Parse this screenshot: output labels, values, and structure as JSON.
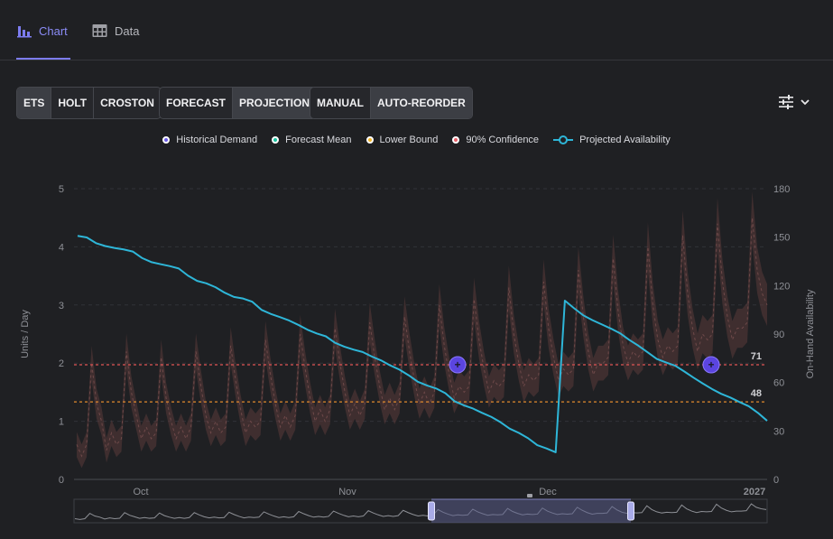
{
  "tabs": [
    {
      "label": "Chart",
      "icon": "bar-chart-icon",
      "active": true
    },
    {
      "label": "Data",
      "icon": "table-icon",
      "active": false
    }
  ],
  "model_group": [
    {
      "label": "ETS",
      "active": true
    },
    {
      "label": "HOLT",
      "active": false
    },
    {
      "label": "CROSTON",
      "active": false
    }
  ],
  "view_group": [
    {
      "label": "FORECAST",
      "active": false
    },
    {
      "label": "PROJECTION",
      "active": true
    }
  ],
  "mode_group": [
    {
      "label": "MANUAL",
      "active": false
    },
    {
      "label": "AUTO-REORDER",
      "active": true
    }
  ],
  "menu": {
    "icon": "sliders-icon",
    "chevron": "chevron-down-icon"
  },
  "legend": [
    {
      "label": "Historical Demand",
      "color": "#6c5ce7"
    },
    {
      "label": "Forecast Mean",
      "color": "#19c3a0"
    },
    {
      "label": "Lower Bound",
      "color": "#f0b429"
    },
    {
      "label": "90% Confidence",
      "color": "#e8606a"
    },
    {
      "label": "Projected Availability",
      "color": "#2eb6d8"
    }
  ],
  "chart_data": {
    "type": "line",
    "y_left": {
      "label": "Units / Day",
      "ticks": [
        0,
        1,
        2,
        3,
        4,
        5
      ],
      "range": [
        0,
        5
      ]
    },
    "y_right": {
      "label": "On-Hand Availability",
      "ticks": [
        0,
        30,
        60,
        90,
        120,
        150,
        180
      ],
      "range": [
        0,
        180
      ]
    },
    "x_ticks": [
      "Oct",
      "Nov",
      "Dec",
      "2027"
    ],
    "reference_lines": [
      {
        "name": "reorder-point",
        "value": 71,
        "color": "#e05555"
      },
      {
        "name": "safety-stock",
        "value": 48,
        "color": "#e08a2c"
      }
    ],
    "series": [
      {
        "name": "Projected Availability",
        "axis": "right",
        "color": "#2eb6d8",
        "values": [
          150.8,
          149.8,
          146.3,
          144.5,
          143.3,
          142.4,
          141.1,
          137.1,
          134.6,
          133.3,
          132.1,
          130.6,
          126.2,
          122.9,
          121.4,
          119.0,
          115.6,
          113.0,
          112.0,
          110.0,
          105.0,
          102.5,
          100.5,
          98.4,
          95.7,
          92.7,
          90.4,
          88.6,
          84.6,
          82.2,
          80.4,
          78.9,
          76.1,
          73.7,
          70.6,
          68.0,
          64.5,
          60.5,
          58.2,
          56.3,
          53.4,
          48.4,
          45.9,
          43.9,
          41.2,
          38.7,
          35.4,
          31.4,
          28.8,
          25.5,
          21.2,
          19.2,
          16.8,
          110.7,
          106.0,
          101.6,
          98.6,
          96.0,
          93.4,
          90.5,
          86.4,
          82.8,
          78.7,
          74.6,
          72.4,
          70.4,
          66.8,
          63.0,
          59.4,
          56.0,
          53.0,
          50.7,
          47.9,
          45.3,
          41.2,
          36.3
        ]
      }
    ],
    "demand_band": {
      "axis": "left",
      "color": "#5a3a3a",
      "values": [
        0.6,
        0.4,
        0.6,
        2.0,
        1.3,
        1.0,
        0.5,
        0.8,
        0.6,
        0.7,
        2.2,
        1.5,
        1.1,
        0.7,
        0.9,
        0.7,
        0.8,
        2.1,
        1.4,
        1.0,
        0.7,
        0.9,
        0.7,
        0.9,
        2.2,
        1.6,
        1.1,
        0.8,
        1.0,
        0.8,
        0.9,
        2.3,
        1.7,
        1.2,
        0.8,
        1.0,
        0.9,
        1.0,
        2.4,
        1.8,
        1.3,
        0.9,
        1.1,
        0.9,
        1.1,
        2.5,
        1.9,
        1.4,
        1.0,
        1.2,
        1.0,
        1.2,
        2.6,
        2.0,
        1.5,
        1.1,
        1.3,
        1.1,
        1.3,
        2.7,
        2.1,
        1.6,
        1.2,
        1.4,
        1.2,
        1.4,
        2.8,
        2.2,
        1.7,
        1.3,
        1.5,
        1.3,
        1.5,
        3.0,
        2.3,
        1.8,
        1.4,
        1.6,
        1.5,
        1.6,
        3.1,
        2.4,
        1.9,
        1.5,
        1.7,
        1.6,
        1.7,
        3.3,
        2.5,
        2.0,
        1.6,
        1.8,
        1.7,
        1.8,
        3.4,
        2.6,
        2.1,
        1.7,
        1.9,
        1.8,
        1.9,
        3.6,
        2.8,
        2.2,
        1.8,
        2.0,
        2.0,
        2.1,
        3.8,
        2.9,
        2.3,
        2.0,
        2.2,
        2.1,
        2.2,
        4.0,
        3.0,
        2.4,
        2.1,
        2.3,
        2.2,
        2.3,
        4.2,
        3.2,
        2.6,
        2.2,
        2.5,
        2.4,
        2.5,
        4.4,
        3.4,
        2.8,
        2.4,
        2.6,
        2.6,
        2.7,
        4.5,
        3.6,
        3.2,
        3.0
      ]
    },
    "reorder_markers": [
      {
        "label": "+",
        "value": 71
      },
      {
        "label": "+",
        "value": 71
      }
    ]
  },
  "navigator": {
    "handle_left": "handle-icon",
    "handle_right": "handle-icon"
  }
}
